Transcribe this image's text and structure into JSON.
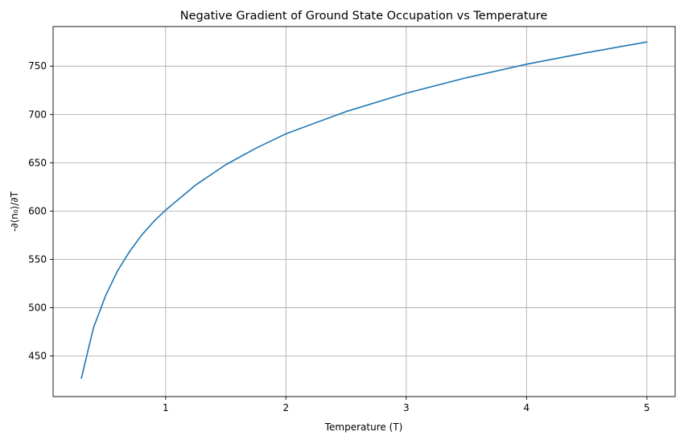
{
  "chart_data": {
    "type": "line",
    "title": "Negative Gradient of Ground State Occupation vs Temperature",
    "xlabel": "Temperature (T)",
    "ylabel": "-∂⟨n₀⟩/∂T",
    "xlim": [
      0.065,
      5.235
    ],
    "ylim": [
      408,
      791
    ],
    "x_ticks": [
      1,
      2,
      3,
      4,
      5
    ],
    "x_tick_labels": [
      "1",
      "2",
      "3",
      "4",
      "5"
    ],
    "y_ticks": [
      450,
      500,
      550,
      600,
      650,
      700,
      750
    ],
    "y_tick_labels": [
      "450",
      "500",
      "550",
      "600",
      "650",
      "700",
      "750"
    ],
    "grid": true,
    "series": [
      {
        "color": "#1f77b4",
        "x": [
          0.3,
          0.4,
          0.5,
          0.6,
          0.7,
          0.8,
          0.9,
          1.0,
          1.25,
          1.5,
          1.75,
          2.0,
          2.5,
          3.0,
          3.5,
          4.0,
          4.5,
          5.0
        ],
        "y": [
          427,
          479,
          512,
          538,
          558,
          575,
          589,
          601,
          627,
          648,
          665,
          680,
          703,
          722,
          738,
          752,
          764,
          775
        ]
      }
    ]
  }
}
